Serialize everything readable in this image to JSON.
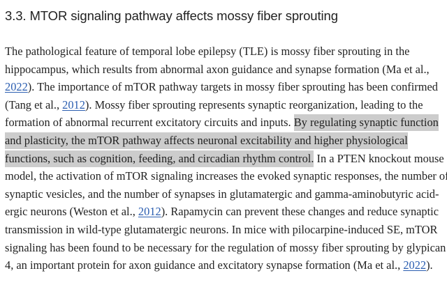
{
  "section": {
    "heading": "3.3. MTOR signaling pathway affects mossy fiber sprouting"
  },
  "lines": [
    [
      "The pathological feature of temporal lobe epilepsy (TLE) is mossy fiber sprouting in the"
    ],
    [
      "hippocampus, which results from abnormal axon guidance and synapse formation (Ma et al.,"
    ],
    [
      "",
      "2022",
      "). The importance of mTOR pathway targets in mossy fiber sprouting has been confirmed"
    ],
    [
      "(Tang et al., ",
      "2012",
      "). Mossy fiber sprouting represents synaptic reorganization, leading to the"
    ],
    [
      "formation of abnormal recurrent excitatory circuits and inputs. ",
      "By regulating synaptic function"
    ],
    [
      "and plasticity, the mTOR pathway affects neuronal excitability and higher physiological"
    ],
    [
      "functions, such as cognition, feeding, and circadian rhythm control.",
      " In a PTEN knockout mouse"
    ],
    [
      "model, the activation of mTOR signaling increases the evoked synaptic responses, the number of"
    ],
    [
      "synaptic vesicles, and the number of synapses in glutamatergic and gamma-aminobutyric acid-"
    ],
    [
      "ergic neurons (Weston et al., ",
      "2012",
      "). Rapamycin can prevent these changes and reduce synaptic"
    ],
    [
      "transmission in wild-type glutamatergic neurons. In mice with pilocarpine-induced SE, mTOR"
    ],
    [
      "signaling has been found to be necessary for the regulation of mossy fiber sprouting by glypican"
    ],
    [
      "4, an important protein for axon guidance and excitatory synapse formation (Ma et al., ",
      "2022",
      ")."
    ]
  ],
  "colors": {
    "highlight": "#cccccc",
    "link": "#2a5db0",
    "text": "#222222"
  }
}
